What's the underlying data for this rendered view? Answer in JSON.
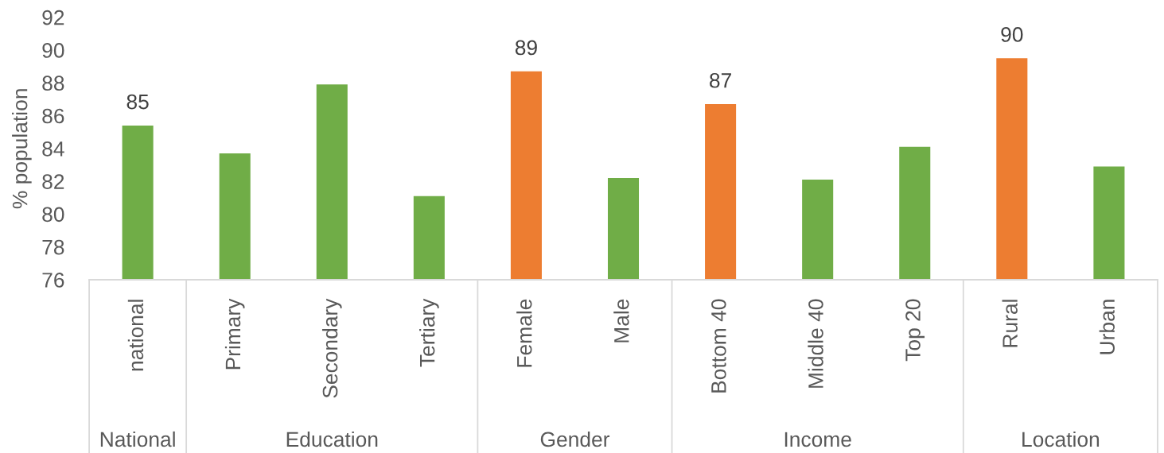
{
  "chart_data": {
    "type": "bar",
    "ylabel": "% population",
    "categories": [
      "national",
      "Primary",
      "Secondary",
      "Tertiary",
      "Female",
      "Male",
      "Bottom 40",
      "Middle 40",
      "Top 20",
      "Rural",
      "Urban"
    ],
    "values": [
      85.4,
      83.7,
      87.9,
      81.1,
      88.7,
      82.2,
      86.7,
      82.1,
      84.1,
      89.5,
      82.9
    ],
    "colors": [
      "#70ad47",
      "#70ad47",
      "#70ad47",
      "#70ad47",
      "#ed7d31",
      "#70ad47",
      "#ed7d31",
      "#70ad47",
      "#70ad47",
      "#ed7d31",
      "#70ad47"
    ],
    "value_labels": [
      "85",
      null,
      null,
      null,
      "89",
      null,
      "87",
      null,
      null,
      "90",
      null
    ],
    "ylim": [
      76,
      92
    ],
    "yticks": [
      76,
      78,
      80,
      82,
      84,
      86,
      88,
      90,
      92
    ],
    "annotations": [
      "National",
      "Education",
      "Gender",
      "Income",
      "Location"
    ]
  }
}
